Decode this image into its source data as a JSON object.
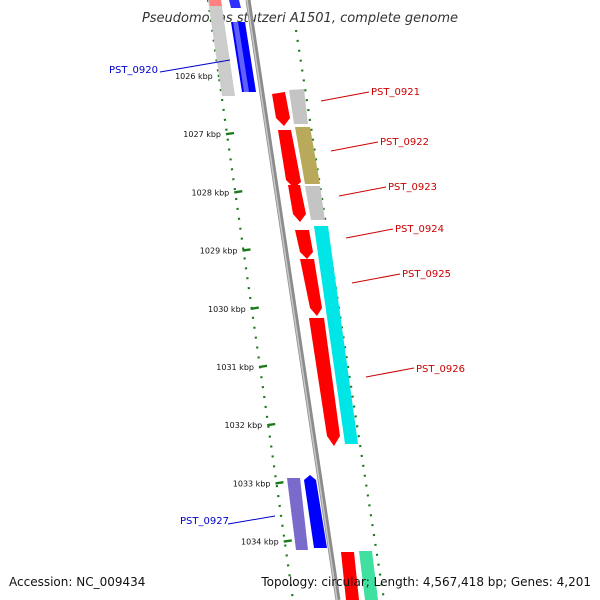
{
  "title": "Pseudomonas stutzeri A1501, complete genome",
  "accession": "Accession: NC_009434",
  "topology": "Topology: circular; Length: 4,567,418 bp; Genes: 4,201",
  "ticks": [
    "1026 kbp",
    "1027 kbp",
    "1028 kbp",
    "1029 kbp",
    "1030 kbp",
    "1031 kbp",
    "1032 kbp",
    "1033 kbp",
    "1034 kbp"
  ],
  "gene_labels": [
    {
      "id": "PST_0920",
      "color": "#0000cc"
    },
    {
      "id": "PST_0921",
      "color": "#cc0000"
    },
    {
      "id": "PST_0922",
      "color": "#cc0000"
    },
    {
      "id": "PST_0923",
      "color": "#cc0000"
    },
    {
      "id": "PST_0924",
      "color": "#cc0000"
    },
    {
      "id": "PST_0925",
      "color": "#cc0000"
    },
    {
      "id": "PST_0926",
      "color": "#cc0000"
    },
    {
      "id": "PST_0927",
      "color": "#0000cc"
    }
  ],
  "colors": {
    "backbone": "#8c8c8c",
    "tick": "#1a7a1a",
    "forward_gene": "#ff0000",
    "reverse_gene": "#0000ff",
    "cyan_feature": "#00e5e5",
    "olive_feature": "#b5a55a",
    "grey_feature": "#c0c0c0",
    "purple_feature": "#7a6acc",
    "green_feature": "#40e0a0"
  }
}
